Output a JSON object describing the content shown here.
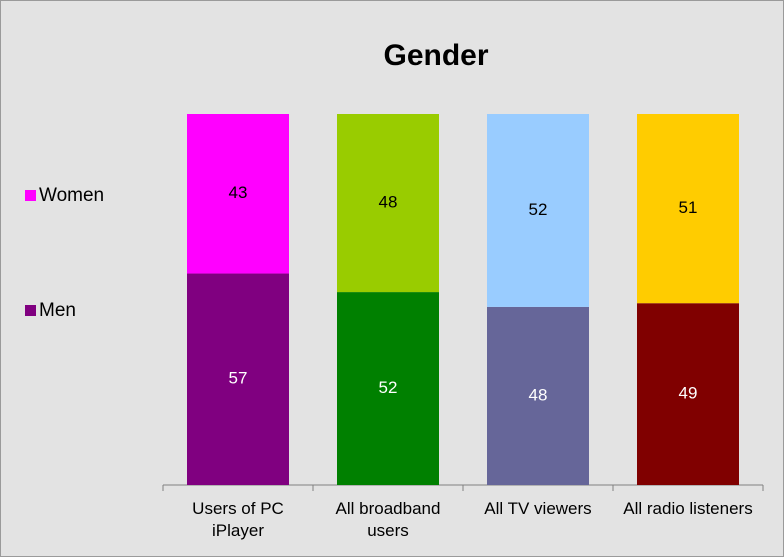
{
  "chart_data": {
    "type": "stacked_bar",
    "title": "Gender",
    "categories": [
      "Users of PC iPlayer",
      "All broadband users",
      "All TV viewers",
      "All radio listeners"
    ],
    "series": [
      {
        "name": "Men",
        "color": [
          "#800080",
          "#008000",
          "#666699",
          "#800000"
        ],
        "values": [
          57,
          52,
          48,
          49
        ]
      },
      {
        "name": "Women",
        "color": [
          "#ff00ff",
          "#99cc00",
          "#99ccff",
          "#ffcc00"
        ],
        "values": [
          43,
          48,
          52,
          51
        ]
      }
    ],
    "legend": "left"
  }
}
